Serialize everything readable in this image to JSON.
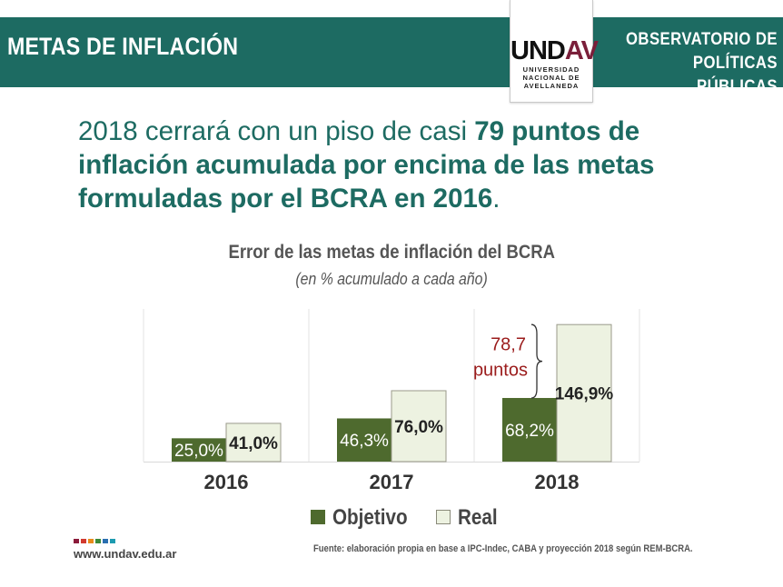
{
  "header": {
    "title": "METAS DE INFLACIÓN",
    "org_line1": "OBSERVATORIO DE",
    "org_line2": "POLÍTICAS PÚBLICAS",
    "band_color": "#1d6b62"
  },
  "logo": {
    "mark_left": "UND",
    "mark_accent": "AV",
    "line1": "UNIVERSIDAD",
    "line2": "NACIONAL DE",
    "line3": "AVELLANEDA"
  },
  "headline": {
    "part1": "2018 cerrará con un piso de casi ",
    "bold": "79 puntos de inflación acumulada por encima de las metas formuladas por el BCRA en 2016",
    "end": "."
  },
  "chart_data": {
    "type": "bar",
    "title": "Error de las metas de inflación del BCRA",
    "subtitle": "(en % acumulado a cada año)",
    "categories": [
      "2016",
      "2017",
      "2018"
    ],
    "series": [
      {
        "name": "Objetivo",
        "values": [
          25.0,
          46.3,
          68.2
        ],
        "labels": [
          "25,0%",
          "46,3%",
          "68,2%"
        ],
        "color": "#4e6a2e"
      },
      {
        "name": "Real",
        "values": [
          41.0,
          76.0,
          146.9
        ],
        "labels": [
          "41,0%",
          "76,0%",
          "146,9%"
        ],
        "color": "#edf2e1"
      }
    ],
    "annotation": {
      "category": "2018",
      "line1": "78,7",
      "line2": "puntos",
      "color": "#9b1c1c"
    },
    "ylim": [
      0,
      150
    ],
    "grid": false,
    "legend_position": "bottom"
  },
  "footer": {
    "site": "www.undav.edu.ar",
    "source": "Fuente: elaboración propia en base a IPC-Indec, CABA y proyección 2018 según REM-BCRA.",
    "dot_colors": [
      "#8b1a3a",
      "#d13a2f",
      "#e88a1a",
      "#3a8a3a",
      "#2a6fb0",
      "#1d9bb0"
    ]
  }
}
